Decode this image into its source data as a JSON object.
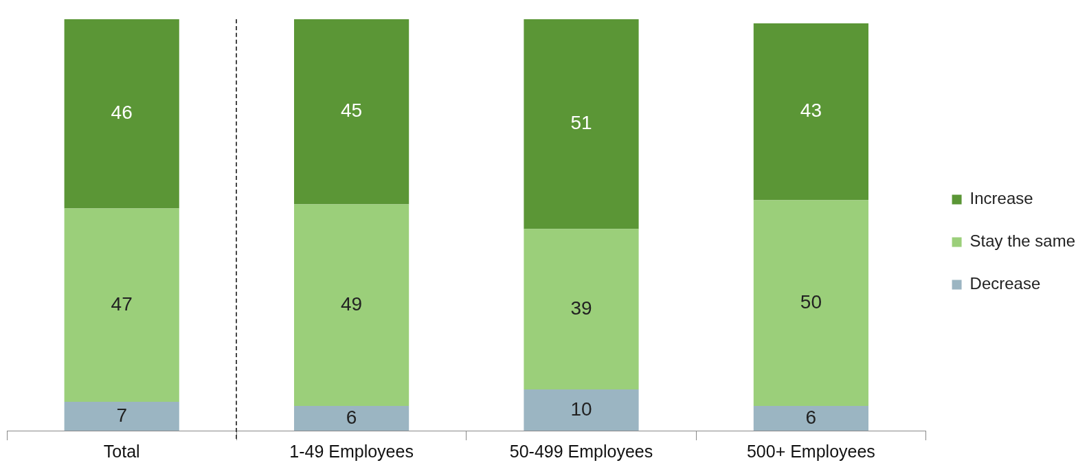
{
  "chart_data": {
    "type": "bar",
    "stacked": true,
    "categories": [
      "Total",
      "1-49 Employees",
      "50-499 Employees",
      "500+ Employees"
    ],
    "series": [
      {
        "name": "Decrease",
        "color": "#9bb5c2",
        "values": [
          7,
          6,
          10,
          6
        ]
      },
      {
        "name": "Stay the same",
        "color": "#9bcf7a",
        "values": [
          47,
          49,
          39,
          50
        ]
      },
      {
        "name": "Increase",
        "color": "#5b9636",
        "values": [
          46,
          45,
          51,
          43
        ]
      }
    ],
    "data_labels": true,
    "legend": "right",
    "grid": false
  }
}
